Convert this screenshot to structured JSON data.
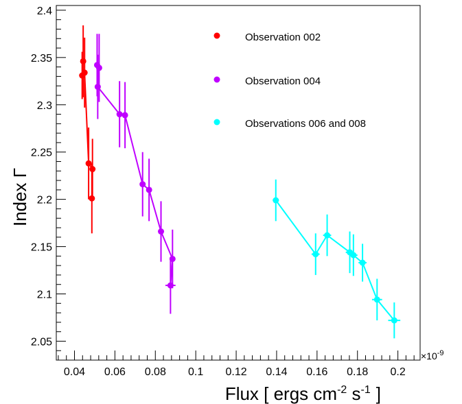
{
  "chart_data": {
    "type": "scatter",
    "xlabel_main": "Flux [ ergs cm",
    "xlabel_exp1": "-2",
    "xlabel_mid": " s",
    "xlabel_exp2": "-1",
    "xlabel_end": "]",
    "ylabel": "Index Γ",
    "x_multiplier_label": "×10",
    "x_multiplier_exp": "-9",
    "xlim": [
      0.031,
      0.211
    ],
    "ylim": [
      2.03,
      2.405
    ],
    "x_ticks": [
      0.04,
      0.06,
      0.08,
      0.1,
      0.12,
      0.14,
      0.16,
      0.18,
      0.2
    ],
    "x_tick_labels": [
      "0.04",
      "0.06",
      "0.08",
      "0.1",
      "0.12",
      "0.14",
      "0.16",
      "0.18",
      "0.2"
    ],
    "y_ticks": [
      2.05,
      2.1,
      2.15,
      2.2,
      2.25,
      2.3,
      2.35,
      2.4
    ],
    "y_tick_labels": [
      "2.05",
      "2.1",
      "2.15",
      "2.2",
      "2.25",
      "2.3",
      "2.35",
      "2.4"
    ],
    "legend_position": "top-right",
    "series": [
      {
        "name": "Observation 002",
        "color": "#ff0000",
        "points": [
          {
            "x": 0.0443,
            "y": 2.346,
            "xerr": 0.0005,
            "yerr": 0.038
          },
          {
            "x": 0.0438,
            "y": 2.331,
            "xerr": 0.0005,
            "yerr": 0.025
          },
          {
            "x": 0.045,
            "y": 2.334,
            "xerr": 0.0005,
            "yerr": 0.037
          },
          {
            "x": 0.047,
            "y": 2.238,
            "xerr": 0.0005,
            "yerr": 0.038
          },
          {
            "x": 0.0489,
            "y": 2.232,
            "xerr": 0.0005,
            "yerr": 0.032
          },
          {
            "x": 0.0486,
            "y": 2.201,
            "xerr": 0.0005,
            "yerr": 0.037
          }
        ]
      },
      {
        "name": "Observation 004",
        "color": "#bf00ff",
        "points": [
          {
            "x": 0.0512,
            "y": 2.342,
            "xerr": 0.0005,
            "yerr": 0.033
          },
          {
            "x": 0.0522,
            "y": 2.339,
            "xerr": 0.0005,
            "yerr": 0.036
          },
          {
            "x": 0.0515,
            "y": 2.319,
            "xerr": 0.0005,
            "yerr": 0.034
          },
          {
            "x": 0.0623,
            "y": 2.29,
            "xerr": 0.001,
            "yerr": 0.035
          },
          {
            "x": 0.065,
            "y": 2.289,
            "xerr": 0.001,
            "yerr": 0.035
          },
          {
            "x": 0.0737,
            "y": 2.216,
            "xerr": 0.0012,
            "yerr": 0.034
          },
          {
            "x": 0.0769,
            "y": 2.21,
            "xerr": 0.0013,
            "yerr": 0.033
          },
          {
            "x": 0.0828,
            "y": 2.166,
            "xerr": 0.0014,
            "yerr": 0.032
          },
          {
            "x": 0.0885,
            "y": 2.137,
            "xerr": 0.0014,
            "yerr": 0.031
          },
          {
            "x": 0.0875,
            "y": 2.109,
            "xerr": 0.0025,
            "yerr": 0.03
          }
        ]
      },
      {
        "name": "Observations 006 and 008",
        "color": "#00ffff",
        "points": [
          {
            "x": 0.1396,
            "y": 2.199,
            "xerr": 0.0015,
            "yerr": 0.022
          },
          {
            "x": 0.1593,
            "y": 2.142,
            "xerr": 0.002,
            "yerr": 0.022
          },
          {
            "x": 0.165,
            "y": 2.162,
            "xerr": 0.002,
            "yerr": 0.022
          },
          {
            "x": 0.1762,
            "y": 2.144,
            "xerr": 0.002,
            "yerr": 0.022
          },
          {
            "x": 0.178,
            "y": 2.141,
            "xerr": 0.002,
            "yerr": 0.022
          },
          {
            "x": 0.1825,
            "y": 2.133,
            "xerr": 0.002,
            "yerr": 0.02
          },
          {
            "x": 0.1897,
            "y": 2.094,
            "xerr": 0.0025,
            "yerr": 0.022
          },
          {
            "x": 0.1982,
            "y": 2.072,
            "xerr": 0.003,
            "yerr": 0.019
          }
        ]
      }
    ]
  }
}
